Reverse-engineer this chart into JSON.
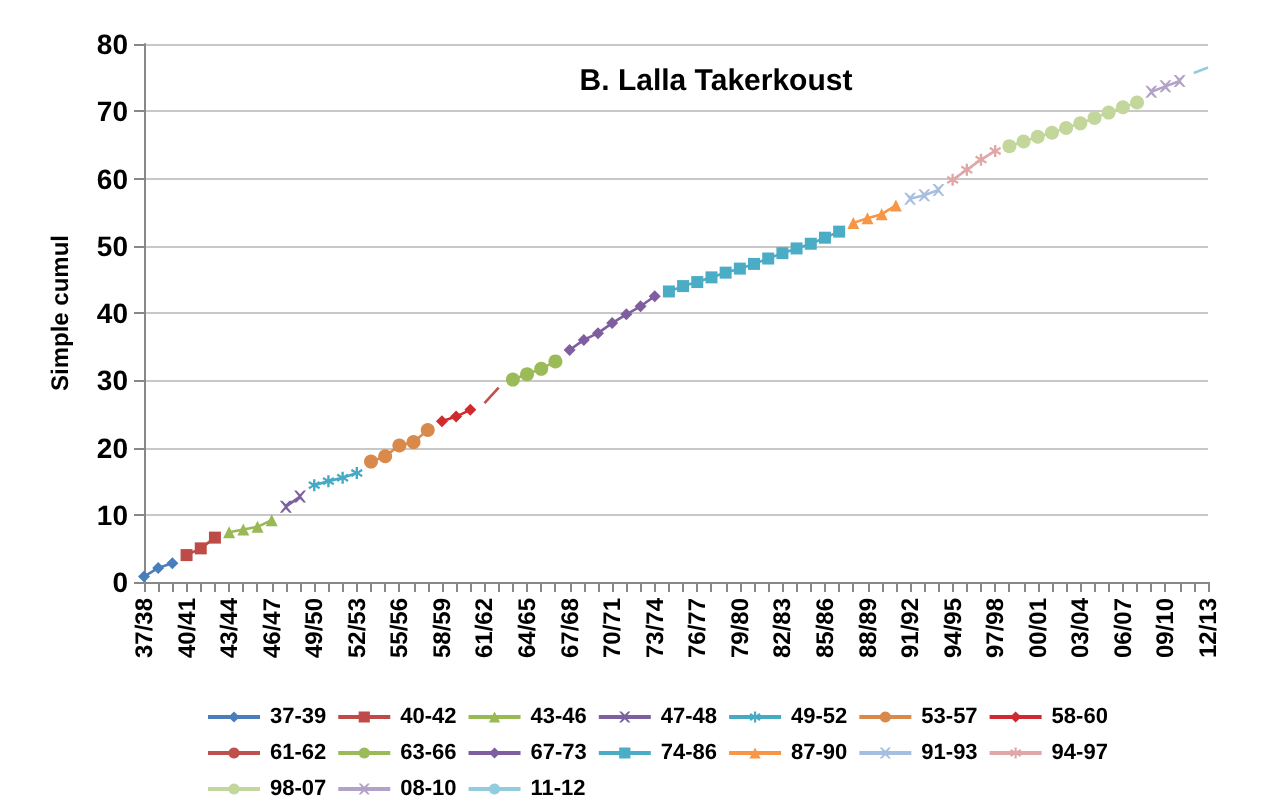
{
  "chart_data": {
    "type": "line",
    "title": "B. Lalla Takerkoust",
    "ylabel": "Simple cumul",
    "categories": [
      "37/38",
      null,
      null,
      "40/41",
      null,
      null,
      "43/44",
      null,
      null,
      "46/47",
      null,
      null,
      "49/50",
      null,
      null,
      "52/53",
      null,
      null,
      "55/56",
      null,
      null,
      "58/59",
      null,
      null,
      "61/62",
      null,
      null,
      "64/65",
      null,
      null,
      "67/68",
      null,
      null,
      "70/71",
      null,
      null,
      "73/74",
      null,
      null,
      "76/77",
      null,
      null,
      "79/80",
      null,
      null,
      "82/83",
      null,
      null,
      "85/86",
      null,
      null,
      "88/89",
      null,
      null,
      "91/92",
      null,
      null,
      "94/95",
      null,
      null,
      "97/98",
      null,
      null,
      "00/01",
      null,
      null,
      "03/04",
      null,
      null,
      "06/07",
      null,
      null,
      "09/10",
      null,
      null,
      "12/13"
    ],
    "ylim": [
      0,
      80
    ],
    "yticks": [
      0,
      10,
      20,
      30,
      40,
      50,
      60,
      70,
      80
    ],
    "grid": "y",
    "legend": "bottom",
    "series": [
      {
        "name": "37-39",
        "color": "#4a7ebb",
        "marker": "diamond",
        "values": [
          0.8,
          2.1,
          2.8,
          null,
          null,
          null,
          null,
          null,
          null,
          null,
          null,
          null,
          null,
          null,
          null,
          null,
          null,
          null,
          null,
          null,
          null,
          null,
          null,
          null,
          null,
          null,
          null,
          null,
          null,
          null,
          null,
          null,
          null,
          null,
          null,
          null,
          null,
          null,
          null,
          null,
          null,
          null,
          null,
          null,
          null,
          null,
          null,
          null,
          null,
          null,
          null,
          null,
          null,
          null,
          null,
          null,
          null,
          null,
          null,
          null,
          null,
          null,
          null,
          null,
          null,
          null,
          null,
          null,
          null,
          null,
          null,
          null,
          null,
          null,
          null,
          null
        ]
      },
      {
        "name": "40-42",
        "color": "#be4b48",
        "marker": "square",
        "values": [
          null,
          null,
          null,
          4.0,
          5.0,
          6.6,
          null,
          null,
          null,
          null,
          null,
          null,
          null,
          null,
          null,
          null,
          null,
          null,
          null,
          null,
          null,
          null,
          null,
          null,
          null,
          null,
          null,
          null,
          null,
          null,
          null,
          null,
          null,
          null,
          null,
          null,
          null,
          null,
          null,
          null,
          null,
          null,
          null,
          null,
          null,
          null,
          null,
          null,
          null,
          null,
          null,
          null,
          null,
          null,
          null,
          null,
          null,
          null,
          null,
          null,
          null,
          null,
          null,
          null,
          null,
          null,
          null,
          null,
          null,
          null,
          null,
          null,
          null,
          null,
          null,
          null
        ]
      },
      {
        "name": "43-46",
        "color": "#98b954",
        "marker": "triangle",
        "values": [
          null,
          null,
          null,
          null,
          null,
          null,
          7.4,
          7.8,
          8.2,
          9.2,
          null,
          null,
          null,
          null,
          null,
          null,
          null,
          null,
          null,
          null,
          null,
          null,
          null,
          null,
          null,
          null,
          null,
          null,
          null,
          null,
          null,
          null,
          null,
          null,
          null,
          null,
          null,
          null,
          null,
          null,
          null,
          null,
          null,
          null,
          null,
          null,
          null,
          null,
          null,
          null,
          null,
          null,
          null,
          null,
          null,
          null,
          null,
          null,
          null,
          null,
          null,
          null,
          null,
          null,
          null,
          null,
          null,
          null,
          null,
          null,
          null,
          null,
          null,
          null,
          null,
          null
        ]
      },
      {
        "name": "47-48",
        "color": "#7d60a0",
        "marker": "cross",
        "values": [
          null,
          null,
          null,
          null,
          null,
          null,
          null,
          null,
          null,
          null,
          11.2,
          12.7,
          null,
          null,
          null,
          null,
          null,
          null,
          null,
          null,
          null,
          null,
          null,
          null,
          null,
          null,
          null,
          null,
          null,
          null,
          null,
          null,
          null,
          null,
          null,
          null,
          null,
          null,
          null,
          null,
          null,
          null,
          null,
          null,
          null,
          null,
          null,
          null,
          null,
          null,
          null,
          null,
          null,
          null,
          null,
          null,
          null,
          null,
          null,
          null,
          null,
          null,
          null,
          null,
          null,
          null,
          null,
          null,
          null,
          null,
          null,
          null,
          null,
          null,
          null,
          null
        ]
      },
      {
        "name": "49-52",
        "color": "#46aac5",
        "marker": "star",
        "values": [
          null,
          null,
          null,
          null,
          null,
          null,
          null,
          null,
          null,
          null,
          null,
          null,
          14.4,
          15.0,
          15.5,
          16.2,
          null,
          null,
          null,
          null,
          null,
          null,
          null,
          null,
          null,
          null,
          null,
          null,
          null,
          null,
          null,
          null,
          null,
          null,
          null,
          null,
          null,
          null,
          null,
          null,
          null,
          null,
          null,
          null,
          null,
          null,
          null,
          null,
          null,
          null,
          null,
          null,
          null,
          null,
          null,
          null,
          null,
          null,
          null,
          null,
          null,
          null,
          null,
          null,
          null,
          null,
          null,
          null,
          null,
          null,
          null,
          null,
          null,
          null,
          null,
          null
        ]
      },
      {
        "name": "53-57",
        "color": "#d9894a",
        "marker": "circle",
        "values": [
          null,
          null,
          null,
          null,
          null,
          null,
          null,
          null,
          null,
          null,
          null,
          null,
          null,
          null,
          null,
          null,
          17.9,
          18.7,
          20.3,
          20.8,
          22.6,
          null,
          null,
          null,
          null,
          null,
          null,
          null,
          null,
          null,
          null,
          null,
          null,
          null,
          null,
          null,
          null,
          null,
          null,
          null,
          null,
          null,
          null,
          null,
          null,
          null,
          null,
          null,
          null,
          null,
          null,
          null,
          null,
          null,
          null,
          null,
          null,
          null,
          null,
          null,
          null,
          null,
          null,
          null,
          null,
          null,
          null,
          null,
          null,
          null,
          null,
          null,
          null,
          null,
          null,
          null
        ]
      },
      {
        "name": "58-60",
        "color": "#d02a2e",
        "marker": "diamond",
        "values": [
          null,
          null,
          null,
          null,
          null,
          null,
          null,
          null,
          null,
          null,
          null,
          null,
          null,
          null,
          null,
          null,
          null,
          null,
          null,
          null,
          null,
          23.9,
          24.6,
          25.6,
          null,
          null,
          null,
          null,
          null,
          null,
          null,
          null,
          null,
          null,
          null,
          null,
          null,
          null,
          null,
          null,
          null,
          null,
          null,
          null,
          null,
          null,
          null,
          null,
          null,
          null,
          null,
          null,
          null,
          null,
          null,
          null,
          null,
          null,
          null,
          null,
          null,
          null,
          null,
          null,
          null,
          null,
          null,
          null,
          null,
          null,
          null,
          null,
          null,
          null,
          null,
          null
        ]
      },
      {
        "name": "61-62",
        "color": "#c0504d",
        "marker": "none",
        "values": [
          null,
          null,
          null,
          null,
          null,
          null,
          null,
          null,
          null,
          null,
          null,
          null,
          null,
          null,
          null,
          null,
          null,
          null,
          null,
          null,
          null,
          null,
          null,
          null,
          26.6,
          28.9,
          null,
          null,
          null,
          null,
          null,
          null,
          null,
          null,
          null,
          null,
          null,
          null,
          null,
          null,
          null,
          null,
          null,
          null,
          null,
          null,
          null,
          null,
          null,
          null,
          null,
          null,
          null,
          null,
          null,
          null,
          null,
          null,
          null,
          null,
          null,
          null,
          null,
          null,
          null,
          null,
          null,
          null,
          null,
          null,
          null,
          null,
          null,
          null,
          null,
          null
        ]
      },
      {
        "name": "63-66",
        "color": "#9bbb59",
        "marker": "circle",
        "values": [
          null,
          null,
          null,
          null,
          null,
          null,
          null,
          null,
          null,
          null,
          null,
          null,
          null,
          null,
          null,
          null,
          null,
          null,
          null,
          null,
          null,
          null,
          null,
          null,
          null,
          null,
          30.1,
          30.9,
          31.7,
          32.8,
          null,
          null,
          null,
          null,
          null,
          null,
          null,
          null,
          null,
          null,
          null,
          null,
          null,
          null,
          null,
          null,
          null,
          null,
          null,
          null,
          null,
          null,
          null,
          null,
          null,
          null,
          null,
          null,
          null,
          null,
          null,
          null,
          null,
          null,
          null,
          null,
          null,
          null,
          null,
          null,
          null,
          null,
          null,
          null,
          null,
          null
        ]
      },
      {
        "name": "67-73",
        "color": "#7e5e9e",
        "marker": "diamond",
        "values": [
          null,
          null,
          null,
          null,
          null,
          null,
          null,
          null,
          null,
          null,
          null,
          null,
          null,
          null,
          null,
          null,
          null,
          null,
          null,
          null,
          null,
          null,
          null,
          null,
          null,
          null,
          null,
          null,
          null,
          null,
          34.5,
          36.0,
          37.0,
          38.5,
          39.8,
          41.0,
          42.5,
          null,
          null,
          null,
          null,
          null,
          null,
          null,
          null,
          null,
          null,
          null,
          null,
          null,
          null,
          null,
          null,
          null,
          null,
          null,
          null,
          null,
          null,
          null,
          null,
          null,
          null,
          null,
          null,
          null,
          null,
          null,
          null,
          null,
          null,
          null,
          null,
          null,
          null,
          null
        ]
      },
      {
        "name": "74-86",
        "color": "#4bacc6",
        "marker": "square",
        "values": [
          null,
          null,
          null,
          null,
          null,
          null,
          null,
          null,
          null,
          null,
          null,
          null,
          null,
          null,
          null,
          null,
          null,
          null,
          null,
          null,
          null,
          null,
          null,
          null,
          null,
          null,
          null,
          null,
          null,
          null,
          null,
          null,
          null,
          null,
          null,
          null,
          null,
          43.2,
          44.0,
          44.6,
          45.3,
          46.0,
          46.6,
          47.3,
          48.1,
          48.9,
          49.6,
          50.3,
          51.2,
          52.1,
          null,
          null,
          null,
          null,
          null,
          null,
          null,
          null,
          null,
          null,
          null,
          null,
          null,
          null,
          null,
          null,
          null,
          null,
          null,
          null,
          null,
          null,
          null,
          null,
          null,
          null
        ]
      },
      {
        "name": "87-90",
        "color": "#f79646",
        "marker": "triangle",
        "values": [
          null,
          null,
          null,
          null,
          null,
          null,
          null,
          null,
          null,
          null,
          null,
          null,
          null,
          null,
          null,
          null,
          null,
          null,
          null,
          null,
          null,
          null,
          null,
          null,
          null,
          null,
          null,
          null,
          null,
          null,
          null,
          null,
          null,
          null,
          null,
          null,
          null,
          null,
          null,
          null,
          null,
          null,
          null,
          null,
          null,
          null,
          null,
          null,
          null,
          null,
          53.4,
          54.1,
          54.7,
          56.0,
          null,
          null,
          null,
          null,
          null,
          null,
          null,
          null,
          null,
          null,
          null,
          null,
          null,
          null,
          null,
          null,
          null,
          null,
          null,
          null,
          null,
          null
        ]
      },
      {
        "name": "91-93",
        "color": "#a6bfe0",
        "marker": "cross",
        "values": [
          null,
          null,
          null,
          null,
          null,
          null,
          null,
          null,
          null,
          null,
          null,
          null,
          null,
          null,
          null,
          null,
          null,
          null,
          null,
          null,
          null,
          null,
          null,
          null,
          null,
          null,
          null,
          null,
          null,
          null,
          null,
          null,
          null,
          null,
          null,
          null,
          null,
          null,
          null,
          null,
          null,
          null,
          null,
          null,
          null,
          null,
          null,
          null,
          null,
          null,
          null,
          null,
          null,
          null,
          57.0,
          57.5,
          58.3,
          null,
          null,
          null,
          null,
          null,
          null,
          null,
          null,
          null,
          null,
          null,
          null,
          null,
          null,
          null,
          null,
          null,
          null,
          null
        ]
      },
      {
        "name": "94-97",
        "color": "#dfa7a6",
        "marker": "star",
        "values": [
          null,
          null,
          null,
          null,
          null,
          null,
          null,
          null,
          null,
          null,
          null,
          null,
          null,
          null,
          null,
          null,
          null,
          null,
          null,
          null,
          null,
          null,
          null,
          null,
          null,
          null,
          null,
          null,
          null,
          null,
          null,
          null,
          null,
          null,
          null,
          null,
          null,
          null,
          null,
          null,
          null,
          null,
          null,
          null,
          null,
          null,
          null,
          null,
          null,
          null,
          null,
          null,
          null,
          null,
          null,
          null,
          null,
          59.8,
          61.3,
          62.8,
          64.1,
          null,
          null,
          null,
          null,
          null,
          null,
          null,
          null,
          null,
          null,
          null,
          null,
          null,
          null,
          null
        ]
      },
      {
        "name": "98-07",
        "color": "#c3d69b",
        "marker": "circle",
        "values": [
          null,
          null,
          null,
          null,
          null,
          null,
          null,
          null,
          null,
          null,
          null,
          null,
          null,
          null,
          null,
          null,
          null,
          null,
          null,
          null,
          null,
          null,
          null,
          null,
          null,
          null,
          null,
          null,
          null,
          null,
          null,
          null,
          null,
          null,
          null,
          null,
          null,
          null,
          null,
          null,
          null,
          null,
          null,
          null,
          null,
          null,
          null,
          null,
          null,
          null,
          null,
          null,
          null,
          null,
          null,
          null,
          null,
          null,
          null,
          null,
          null,
          64.8,
          65.5,
          66.2,
          66.8,
          67.5,
          68.2,
          69.0,
          69.8,
          70.6,
          71.3,
          null,
          null,
          null,
          null,
          null
        ]
      },
      {
        "name": "08-10",
        "color": "#b3a2c7",
        "marker": "cross",
        "values": [
          null,
          null,
          null,
          null,
          null,
          null,
          null,
          null,
          null,
          null,
          null,
          null,
          null,
          null,
          null,
          null,
          null,
          null,
          null,
          null,
          null,
          null,
          null,
          null,
          null,
          null,
          null,
          null,
          null,
          null,
          null,
          null,
          null,
          null,
          null,
          null,
          null,
          null,
          null,
          null,
          null,
          null,
          null,
          null,
          null,
          null,
          null,
          null,
          null,
          null,
          null,
          null,
          null,
          null,
          null,
          null,
          null,
          null,
          null,
          null,
          null,
          null,
          null,
          null,
          null,
          null,
          null,
          null,
          null,
          null,
          null,
          72.9,
          73.7,
          74.5,
          null,
          null
        ]
      },
      {
        "name": "11-12",
        "color": "#93cddd",
        "marker": "none",
        "values": [
          null,
          null,
          null,
          null,
          null,
          null,
          null,
          null,
          null,
          null,
          null,
          null,
          null,
          null,
          null,
          null,
          null,
          null,
          null,
          null,
          null,
          null,
          null,
          null,
          null,
          null,
          null,
          null,
          null,
          null,
          null,
          null,
          null,
          null,
          null,
          null,
          null,
          null,
          null,
          null,
          null,
          null,
          null,
          null,
          null,
          null,
          null,
          null,
          null,
          null,
          null,
          null,
          null,
          null,
          null,
          null,
          null,
          null,
          null,
          null,
          null,
          null,
          null,
          null,
          null,
          null,
          null,
          null,
          null,
          null,
          null,
          null,
          null,
          null,
          75.7,
          76.5
        ]
      }
    ]
  }
}
